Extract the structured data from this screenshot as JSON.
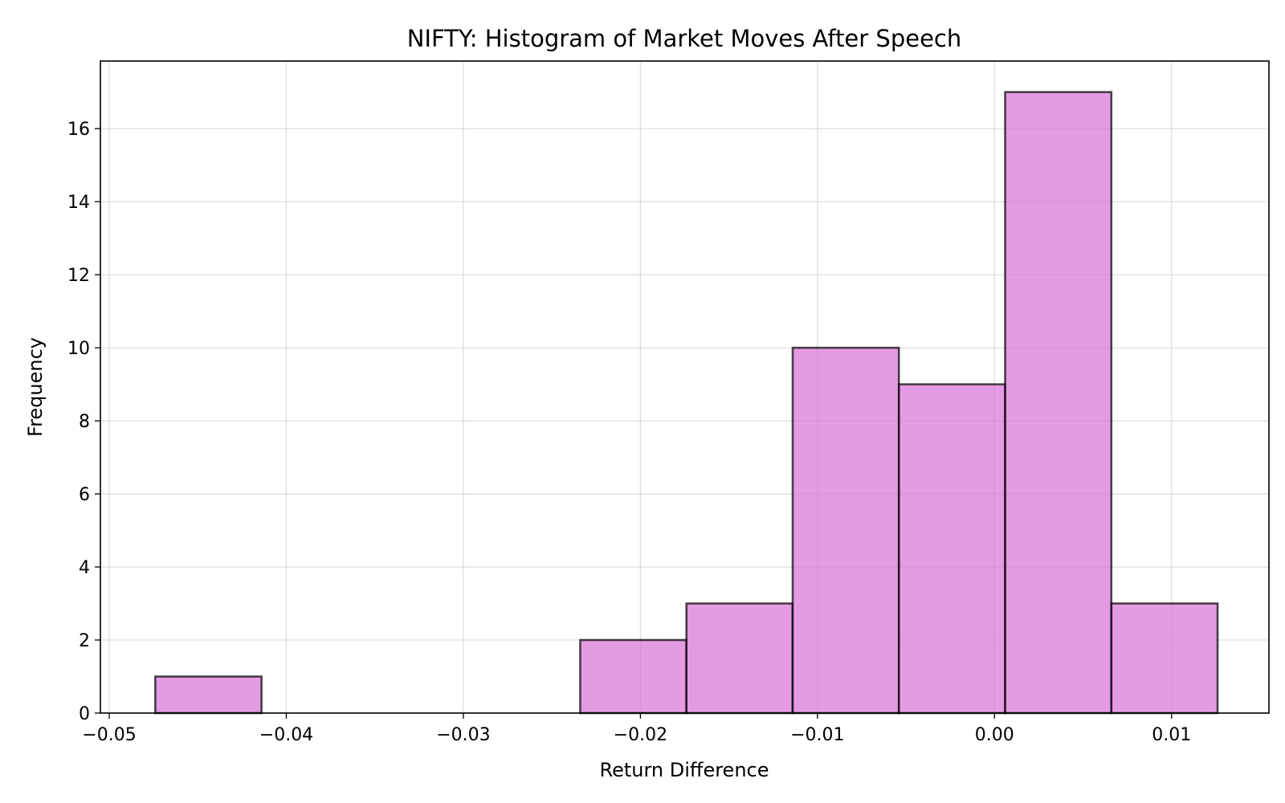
{
  "chart_data": {
    "type": "bar",
    "title": "NIFTY: Histogram of Market Moves After Speech",
    "xlabel": "Return Difference",
    "ylabel": "Frequency",
    "xlim": [
      -0.0505,
      0.0155
    ],
    "ylim": [
      0,
      17.85
    ],
    "x_ticks": [
      -0.05,
      -0.04,
      -0.03,
      -0.02,
      -0.01,
      0.0,
      0.01
    ],
    "x_tick_labels": [
      "−0.05",
      "−0.04",
      "−0.03",
      "−0.02",
      "−0.01",
      "0.00",
      "0.01"
    ],
    "y_ticks": [
      0,
      2,
      4,
      6,
      8,
      10,
      12,
      14,
      16
    ],
    "y_tick_labels": [
      "0",
      "2",
      "4",
      "6",
      "8",
      "10",
      "12",
      "14",
      "16"
    ],
    "bin_edges": [
      -0.0474,
      -0.0414,
      -0.0354,
      -0.0294,
      -0.0234,
      -0.0174,
      -0.0114,
      -0.0054,
      0.0006,
      0.0066,
      0.0126
    ],
    "values": [
      1,
      0,
      0,
      0,
      2,
      3,
      10,
      9,
      17,
      3
    ],
    "grid": true,
    "bar_color": "#da70d6",
    "edge_color": "#000000"
  }
}
